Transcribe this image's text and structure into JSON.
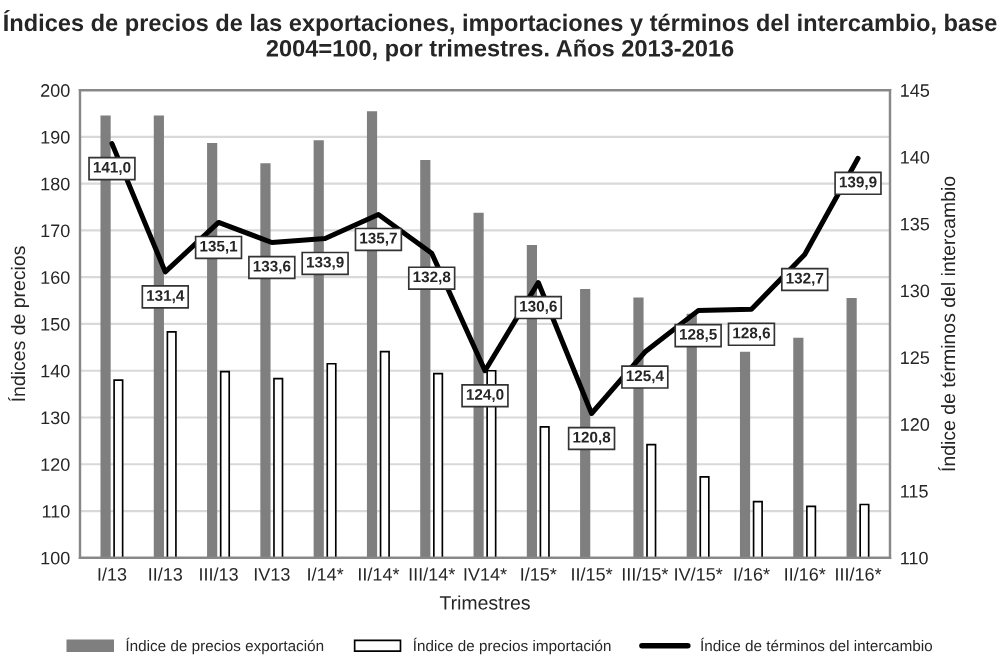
{
  "chart_data": {
    "type": "bar",
    "title": "Índices de precios de las exportaciones, importaciones y términos del intercambio, base 2004=100, por trimestres. Años 2013-2016",
    "xlabel": "Trimestres",
    "ylabel": "Índices de precios",
    "y2label": "Índice de términos del intercambio",
    "categories": [
      "I/13",
      "II/13",
      "III/13",
      "IV13",
      "I/14*",
      "II/14*",
      "III/14*",
      "IV14*",
      "I/15*",
      "II/15*",
      "III/15*",
      "IV/15*",
      "I/16*",
      "II/16*",
      "III/16*"
    ],
    "series": [
      {
        "name": "Índice de precios exportación",
        "color": "#7f7f7f",
        "values": [
          194.4,
          194.4,
          188.5,
          184.2,
          189.1,
          195.3,
          184.9,
          173.6,
          166.7,
          157.3,
          155.5,
          152,
          143.9,
          146.9,
          155.4
        ]
      },
      {
        "name": "Índice de precios importación",
        "color": "#ffffff",
        "values": [
          138.0,
          148.3,
          139.8,
          138.3,
          141.5,
          144.1,
          139.4,
          140.0,
          128.0,
          null,
          124.2,
          117.3,
          112.0,
          111.0,
          111.4
        ]
      },
      {
        "name": "Índice de términos del intercambio",
        "type": "line",
        "axis": "y2",
        "color": "#000000",
        "values": [
          141.0,
          131.4,
          135.1,
          133.6,
          133.9,
          135.7,
          132.8,
          124.0,
          130.6,
          120.8,
          125.4,
          128.5,
          128.6,
          132.7,
          139.9
        ],
        "value_labels": [
          "141,0",
          "131,4",
          "135,1",
          "133,6",
          "133,9",
          "135,7",
          "132,8",
          "124,0",
          "130,6",
          "120,8",
          "125,4",
          "128,5",
          "128,6",
          "132,7",
          "139,9"
        ]
      }
    ],
    "ylim": [
      100,
      200
    ],
    "yticks": [
      100,
      110,
      120,
      130,
      140,
      150,
      160,
      170,
      180,
      190,
      200
    ],
    "y2lim": [
      110,
      145
    ],
    "y2ticks": [
      110,
      115,
      120,
      125,
      130,
      135,
      140,
      145
    ],
    "grid": "y",
    "legend": "bottom",
    "marker": "none",
    "line_style": "solid"
  }
}
